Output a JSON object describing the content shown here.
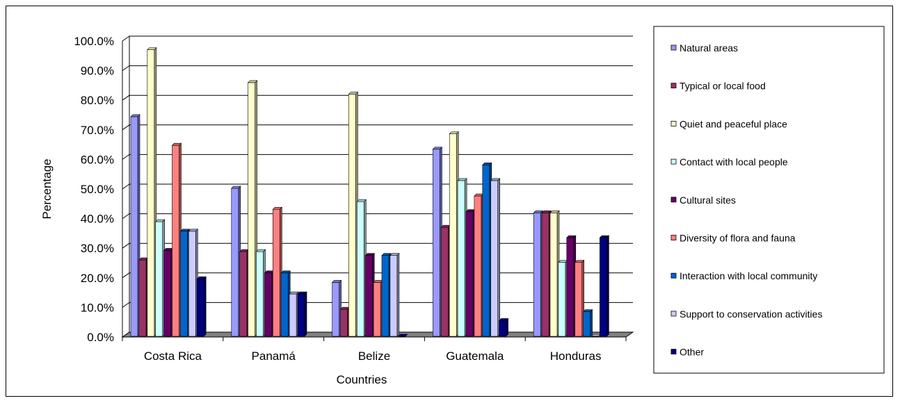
{
  "chart_data": {
    "type": "bar",
    "title": "",
    "xlabel": "Countries",
    "ylabel": "Percentage",
    "ylim": [
      0,
      100
    ],
    "yticks": [
      "0.0%",
      "10.0%",
      "20.0%",
      "30.0%",
      "40.0%",
      "50.0%",
      "60.0%",
      "70.0%",
      "80.0%",
      "90.0%",
      "100.0%"
    ],
    "grid": true,
    "legend_position": "right",
    "categories": [
      "Costa Rica",
      "Panamá",
      "Belize",
      "Guatemala",
      "Honduras"
    ],
    "series": [
      {
        "name": "Natural areas",
        "color": "#9999FF",
        "values": [
          74.2,
          50.0,
          18.2,
          63.2,
          41.7
        ]
      },
      {
        "name": "Typical or local food",
        "color": "#993366",
        "values": [
          25.8,
          28.6,
          9.1,
          36.8,
          41.7
        ]
      },
      {
        "name": "Quiet and peaceful place",
        "color": "#FFFFCC",
        "values": [
          96.8,
          85.7,
          81.8,
          68.4,
          41.7
        ]
      },
      {
        "name": "Contact with local people",
        "color": "#CCFFFF",
        "values": [
          38.7,
          28.6,
          45.5,
          52.6,
          25.0
        ]
      },
      {
        "name": "Cultural sites",
        "color": "#660066",
        "values": [
          29.0,
          21.4,
          27.3,
          42.1,
          33.3
        ]
      },
      {
        "name": "Diversity of flora and fauna",
        "color": "#FF8080",
        "values": [
          64.5,
          42.9,
          18.2,
          47.4,
          25.0
        ]
      },
      {
        "name": "Interaction with local community",
        "color": "#0066CC",
        "values": [
          35.5,
          21.4,
          27.3,
          57.9,
          8.3
        ]
      },
      {
        "name": "Support to conservation activities",
        "color": "#CCCCFF",
        "values": [
          35.5,
          14.3,
          27.3,
          52.6,
          0.0
        ]
      },
      {
        "name": "Other",
        "color": "#000080",
        "values": [
          19.4,
          14.3,
          0.0,
          5.3,
          33.3
        ]
      }
    ]
  }
}
